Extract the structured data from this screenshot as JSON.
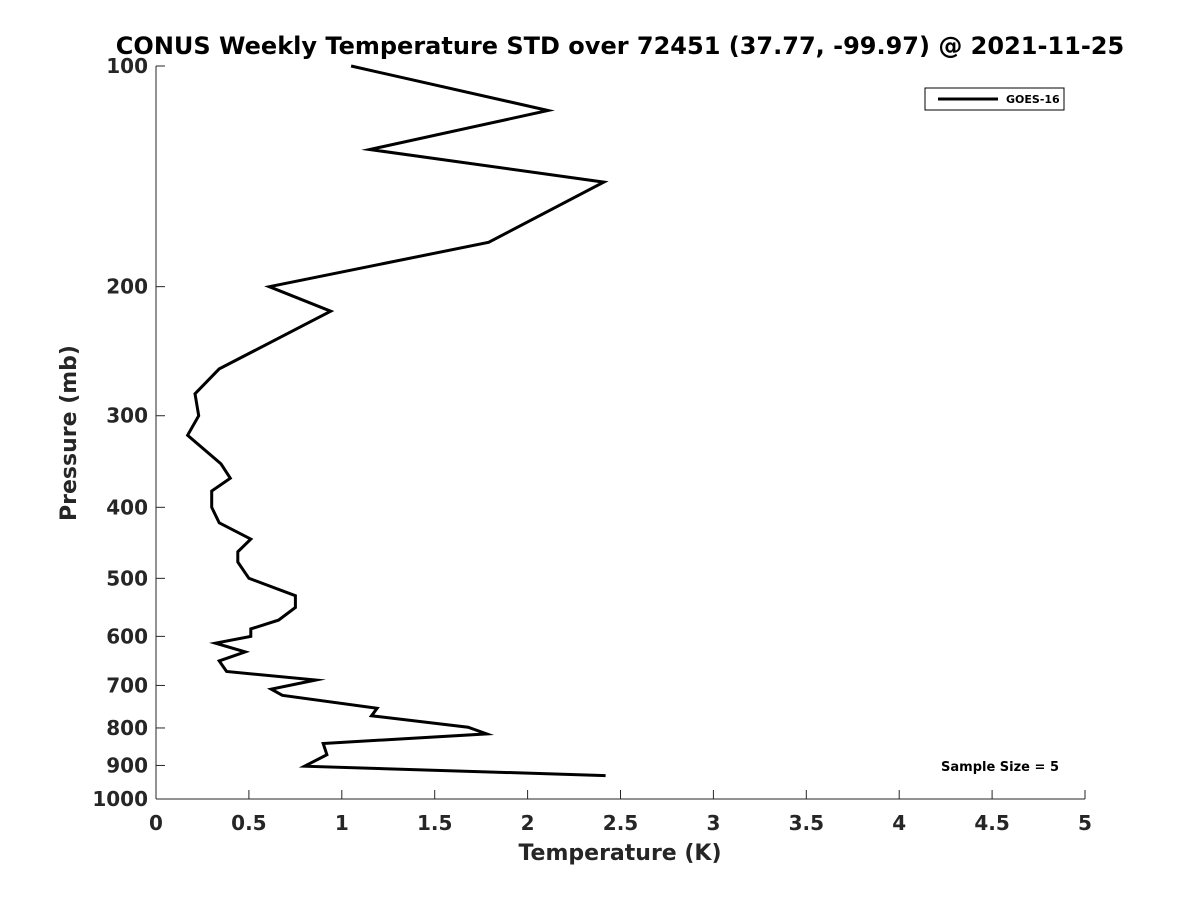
{
  "chart_data": {
    "type": "line",
    "title": "CONUS Weekly Temperature STD over 72451 (37.77, -99.97) @ 2021-11-25",
    "xlabel": "Temperature (K)",
    "ylabel": "Pressure (mb)",
    "xlim": [
      0,
      5
    ],
    "ylim": [
      100,
      1000
    ],
    "y_scale": "log",
    "y_direction": "reversed",
    "grid": false,
    "legend_position": "top-right",
    "x_ticks": [
      "0",
      "0.5",
      "1",
      "1.5",
      "2",
      "2.5",
      "3",
      "3.5",
      "4",
      "4.5",
      "5"
    ],
    "y_ticks": [
      "100",
      "200",
      "300",
      "400",
      "500",
      "600",
      "700",
      "800",
      "900",
      "1000"
    ],
    "series": [
      {
        "name": "GOES-16",
        "color": "#000000",
        "points": [
          [
            1.05,
            100
          ],
          [
            2.11,
            115
          ],
          [
            1.15,
            130
          ],
          [
            2.41,
            144
          ],
          [
            1.79,
            174
          ],
          [
            0.61,
            200
          ],
          [
            0.94,
            216
          ],
          [
            0.34,
            259
          ],
          [
            0.21,
            280
          ],
          [
            0.23,
            300
          ],
          [
            0.17,
            319
          ],
          [
            0.35,
            349
          ],
          [
            0.4,
            365
          ],
          [
            0.3,
            380
          ],
          [
            0.3,
            400
          ],
          [
            0.34,
            420
          ],
          [
            0.51,
            442
          ],
          [
            0.44,
            460
          ],
          [
            0.44,
            475
          ],
          [
            0.5,
            500
          ],
          [
            0.75,
            528
          ],
          [
            0.75,
            548
          ],
          [
            0.66,
            570
          ],
          [
            0.51,
            586
          ],
          [
            0.51,
            600
          ],
          [
            0.32,
            613
          ],
          [
            0.48,
            630
          ],
          [
            0.34,
            648
          ],
          [
            0.38,
            670
          ],
          [
            0.86,
            688
          ],
          [
            0.62,
            708
          ],
          [
            0.68,
            722
          ],
          [
            1.19,
            752
          ],
          [
            1.16,
            770
          ],
          [
            1.68,
            798
          ],
          [
            1.78,
            815
          ],
          [
            0.9,
            840
          ],
          [
            0.92,
            870
          ],
          [
            0.8,
            902
          ],
          [
            2.42,
            929
          ]
        ]
      }
    ],
    "annotation": "Sample Size = 5"
  }
}
